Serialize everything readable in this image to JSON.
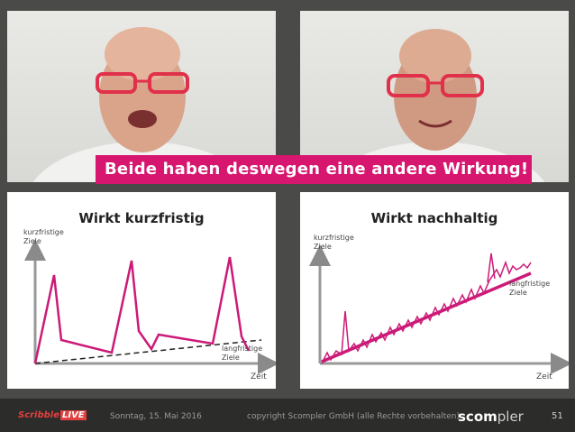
{
  "banner": {
    "text": "Beide haben deswegen eine andere Wirkung!"
  },
  "left_chart": {
    "title": "Wirkt kurzfristig",
    "y_label_1": "kurzfristige",
    "y_label_2": "Ziele",
    "x_label": "Zeit",
    "long_label_1": "langfristige",
    "long_label_2": "Ziele"
  },
  "right_chart": {
    "title": "Wirkt nachhaltig",
    "y_label_1": "kurzfristige",
    "y_label_2": "Ziele",
    "x_label": "Zeit",
    "long_label_1": "langfristige",
    "long_label_2": "Ziele"
  },
  "footer": {
    "date": "Sonntag, 15. Mai 2016",
    "copyright": "copyright Scompler GmbH (alle Rechte vorbehalten)",
    "logo_scribble_a": "Scribble",
    "logo_scribble_b": "LIVE",
    "logo_scompler_a": "scom",
    "logo_scompler_b": "pler",
    "page": "51"
  },
  "colors": {
    "accent": "#d6166f",
    "background": "#4a4a48"
  }
}
